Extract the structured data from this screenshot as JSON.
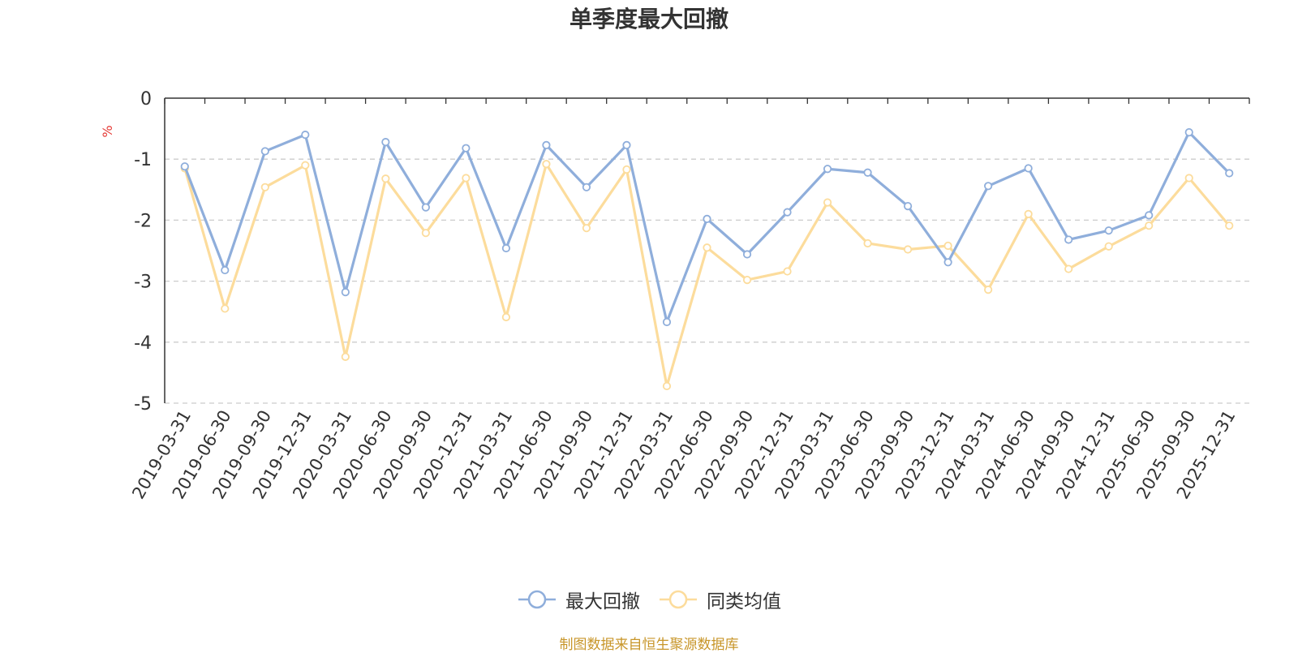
{
  "title": "单季度最大回撤",
  "source": "制图数据来自恒生聚源数据库",
  "chart_data": {
    "type": "line",
    "title": "单季度最大回撤",
    "ylabel": "%",
    "ylim": [
      -5,
      0
    ],
    "yticks": [
      0,
      -1,
      -2,
      -3,
      -4,
      -5
    ],
    "grid": true,
    "legend_position": "bottom-center",
    "categories": [
      "2019-03-31",
      "2019-06-30",
      "2019-09-30",
      "2019-12-31",
      "2020-03-31",
      "2020-06-30",
      "2020-09-30",
      "2020-12-31",
      "2021-03-31",
      "2021-06-30",
      "2021-09-30",
      "2021-12-31",
      "2022-03-31",
      "2022-06-30",
      "2022-09-30",
      "2022-12-31",
      "2023-03-31",
      "2023-06-30",
      "2023-09-30",
      "2023-12-31",
      "2024-03-31",
      "2024-06-30",
      "2024-09-30",
      "2024-12-31",
      "2025-06-30",
      "2025-09-30",
      "2025-12-31"
    ],
    "series": [
      {
        "name": "最大回撤",
        "color": "#8faedb",
        "values": [
          -1.12,
          -2.82,
          -0.87,
          -0.6,
          -3.18,
          -0.72,
          -1.79,
          -0.82,
          -2.46,
          -0.77,
          -1.46,
          -0.77,
          -3.67,
          -1.98,
          -2.56,
          -1.87,
          -1.16,
          -1.22,
          -1.77,
          -2.69,
          -1.44,
          -1.15,
          -2.32,
          -2.17,
          -1.92,
          -0.56,
          -1.23
        ]
      },
      {
        "name": "同类均值",
        "color": "#fcdc9c",
        "values": [
          -1.15,
          -3.45,
          -1.46,
          -1.1,
          -4.24,
          -1.32,
          -2.21,
          -1.31,
          -3.59,
          -1.08,
          -2.13,
          -1.17,
          -4.72,
          -2.45,
          -2.98,
          -2.84,
          -1.71,
          -2.38,
          -2.48,
          -2.42,
          -3.14,
          -1.9,
          -2.8,
          -2.43,
          -2.09,
          -1.31,
          -2.09
        ]
      }
    ]
  }
}
